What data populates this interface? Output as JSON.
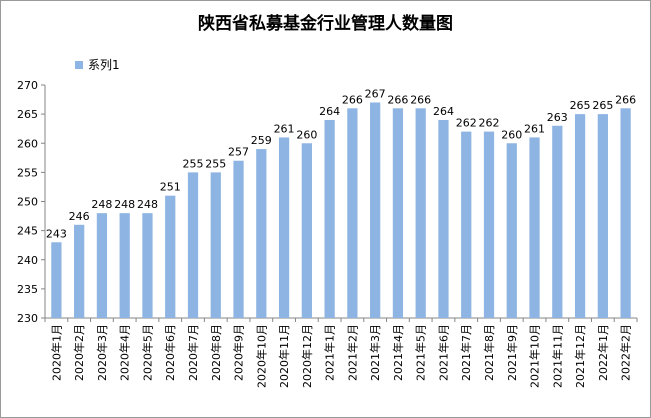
{
  "chart_data": {
    "type": "bar",
    "title": "陕西省私募基金行业管理人数量图",
    "xlabel": "",
    "ylabel": "",
    "ylim": [
      230,
      270
    ],
    "yticks": [
      230,
      235,
      240,
      245,
      250,
      255,
      260,
      265,
      270
    ],
    "legend": "top-left",
    "grid": false,
    "categories": [
      "2020年1月",
      "2020年2月",
      "2020年3月",
      "2020年4月",
      "2020年5月",
      "2020年6月",
      "2020年7月",
      "2020年8月",
      "2020年9月",
      "2020年10月",
      "2020年11月",
      "2020年12月",
      "2021年1月",
      "2021年2月",
      "2021年3月",
      "2021年4月",
      "2021年5月",
      "2021年6月",
      "2021年7月",
      "2021年8月",
      "2021年9月",
      "2021年10月",
      "2021年11月",
      "2021年12月",
      "2022年1月",
      "2022年2月"
    ],
    "series": [
      {
        "name": "系列1",
        "color": "#8DB4E2",
        "values": [
          243,
          246,
          248,
          248,
          248,
          251,
          255,
          255,
          257,
          259,
          261,
          260,
          264,
          266,
          267,
          266,
          266,
          264,
          262,
          262,
          260,
          261,
          263,
          265,
          265,
          266
        ]
      }
    ]
  }
}
